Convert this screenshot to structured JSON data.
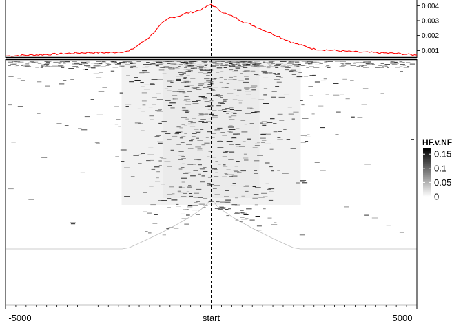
{
  "chart_data": [
    {
      "type": "line",
      "panel": "profile",
      "x": [
        -5000,
        -4500,
        -4000,
        -3500,
        -3000,
        -2500,
        -2000,
        -1800,
        -1500,
        -1200,
        -1000,
        -800,
        -600,
        -400,
        -200,
        0,
        200,
        400,
        600,
        800,
        1000,
        1500,
        2000,
        2500,
        3000,
        3500,
        4000,
        4500,
        5000
      ],
      "y": [
        0.00063,
        0.00068,
        0.00073,
        0.0008,
        0.00086,
        0.00085,
        0.00095,
        0.0013,
        0.0019,
        0.0028,
        0.0032,
        0.0033,
        0.0035,
        0.0036,
        0.0038,
        0.0041,
        0.0037,
        0.0034,
        0.0032,
        0.0029,
        0.0027,
        0.0021,
        0.0015,
        0.0011,
        0.001,
        0.0009,
        0.00085,
        0.0008,
        0.00068
      ],
      "color": "#ff0000",
      "xlim": [
        -5000,
        5000
      ],
      "ylim": [
        0.0006,
        0.0042
      ],
      "y_ticks": [
        0.001,
        0.002,
        0.003,
        0.004
      ],
      "y_tick_labels": [
        "0.001",
        "0.002",
        "0.003",
        "0.004"
      ],
      "y_axis_side": "right",
      "reference_line": {
        "x": 0,
        "style": "dashed",
        "color": "#000000"
      }
    },
    {
      "type": "heatmap",
      "panel": "heatmap",
      "xlim": [
        -5000,
        5000
      ],
      "x_ticks": [
        -5000,
        0,
        5000
      ],
      "x_tick_labels": [
        "-5000",
        "start",
        "5000"
      ],
      "reference_line": {
        "x": 0,
        "style": "dashed",
        "color": "#000000"
      },
      "color_scale": {
        "title": "HF.v.NF",
        "low_color": "#ffffff",
        "high_color": "#000000",
        "range": [
          0,
          0.17
        ],
        "ticks": [
          0.15,
          0.1,
          0.05,
          0
        ],
        "tick_labels": [
          "0.15",
          "0.1",
          "0.05",
          "0"
        ]
      },
      "legend_position": "right"
    }
  ]
}
